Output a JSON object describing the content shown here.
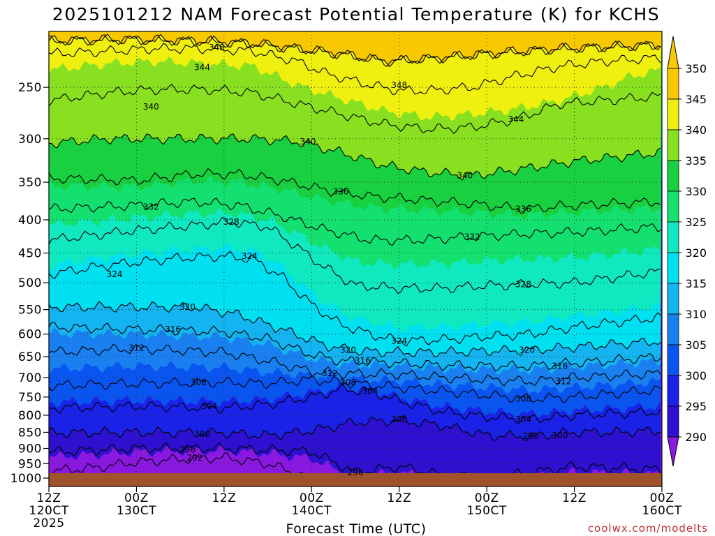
{
  "chart_data": {
    "type": "contour",
    "title": "2025101212 NAM Forecast Potential Temperature (K) for KCHS",
    "xlabel": "Forecast Time (UTC)",
    "ylabel": "",
    "credit": "coolwx.com/modelts",
    "y_scale": "log",
    "ylim": [
      1030,
      205
    ],
    "y_ticks": [
      250,
      300,
      350,
      400,
      450,
      500,
      550,
      600,
      650,
      700,
      750,
      800,
      850,
      900,
      950,
      1000
    ],
    "x_ticks": [
      {
        "x": 0,
        "line1": "12Z",
        "line2": "120CT",
        "line3": "2025"
      },
      {
        "x": 12,
        "line1": "00Z",
        "line2": "130CT",
        "line3": ""
      },
      {
        "x": 24,
        "line1": "12Z",
        "line2": "",
        "line3": ""
      },
      {
        "x": 36,
        "line1": "00Z",
        "line2": "140CT",
        "line3": ""
      },
      {
        "x": 48,
        "line1": "12Z",
        "line2": "",
        "line3": ""
      },
      {
        "x": 60,
        "line1": "00Z",
        "line2": "150CT",
        "line3": ""
      },
      {
        "x": 72,
        "line1": "12Z",
        "line2": "",
        "line3": ""
      },
      {
        "x": 84,
        "line1": "00Z",
        "line2": "160CT",
        "line3": ""
      }
    ],
    "xlim": [
      0,
      84
    ],
    "colorbar": {
      "levels": [
        290,
        295,
        300,
        305,
        310,
        315,
        320,
        325,
        330,
        335,
        340,
        345,
        350
      ],
      "colors": [
        "#8a18e0",
        "#2d10d0",
        "#1a22e8",
        "#0a55f0",
        "#1a80f0",
        "#14b4f0",
        "#00e0f0",
        "#10e8c0",
        "#14e070",
        "#18d040",
        "#88e020",
        "#f0f010",
        "#f8c800"
      ]
    },
    "isentrope_levels": [
      292,
      296,
      300,
      304,
      308,
      312,
      316,
      320,
      324,
      328,
      332,
      336,
      340,
      344,
      348
    ],
    "isentrope_labels": [
      {
        "k": 348,
        "x": 23.0,
        "p": 217
      },
      {
        "k": 344,
        "x": 21.0,
        "p": 233
      },
      {
        "k": 340,
        "x": 14.0,
        "p": 268
      },
      {
        "k": 348,
        "x": 48.0,
        "p": 248
      },
      {
        "k": 344,
        "x": 64.0,
        "p": 280
      },
      {
        "k": 340,
        "x": 35.5,
        "p": 303
      },
      {
        "k": 340,
        "x": 57.0,
        "p": 342
      },
      {
        "k": 336,
        "x": 40.0,
        "p": 362
      },
      {
        "k": 336,
        "x": 65.0,
        "p": 385
      },
      {
        "k": 332,
        "x": 14.0,
        "p": 382
      },
      {
        "k": 328,
        "x": 25.0,
        "p": 403
      },
      {
        "k": 332,
        "x": 58.0,
        "p": 425
      },
      {
        "k": 324,
        "x": 27.5,
        "p": 455
      },
      {
        "k": 324,
        "x": 9.0,
        "p": 485
      },
      {
        "k": 328,
        "x": 65.0,
        "p": 503
      },
      {
        "k": 320,
        "x": 19.0,
        "p": 545
      },
      {
        "k": 316,
        "x": 17.0,
        "p": 590
      },
      {
        "k": 312,
        "x": 12.0,
        "p": 630
      },
      {
        "k": 324,
        "x": 48.0,
        "p": 615
      },
      {
        "k": 320,
        "x": 41.0,
        "p": 635
      },
      {
        "k": 316,
        "x": 43.0,
        "p": 660
      },
      {
        "k": 312,
        "x": 38.5,
        "p": 690
      },
      {
        "k": 320,
        "x": 65.5,
        "p": 635
      },
      {
        "k": 316,
        "x": 70.0,
        "p": 672
      },
      {
        "k": 312,
        "x": 70.5,
        "p": 710
      },
      {
        "k": 308,
        "x": 20.5,
        "p": 712
      },
      {
        "k": 308,
        "x": 41.0,
        "p": 712
      },
      {
        "k": 304,
        "x": 44.0,
        "p": 735
      },
      {
        "k": 308,
        "x": 65.0,
        "p": 755
      },
      {
        "k": 304,
        "x": 22.0,
        "p": 775
      },
      {
        "k": 304,
        "x": 65.0,
        "p": 812
      },
      {
        "k": 300,
        "x": 48.0,
        "p": 812
      },
      {
        "k": 300,
        "x": 21.0,
        "p": 855
      },
      {
        "k": 300,
        "x": 70.0,
        "p": 860
      },
      {
        "k": 296,
        "x": 66.0,
        "p": 862
      },
      {
        "k": 296,
        "x": 19.0,
        "p": 905
      },
      {
        "k": 292,
        "x": 20.0,
        "p": 930
      },
      {
        "k": 296,
        "x": 42.0,
        "p": 980
      }
    ]
  }
}
